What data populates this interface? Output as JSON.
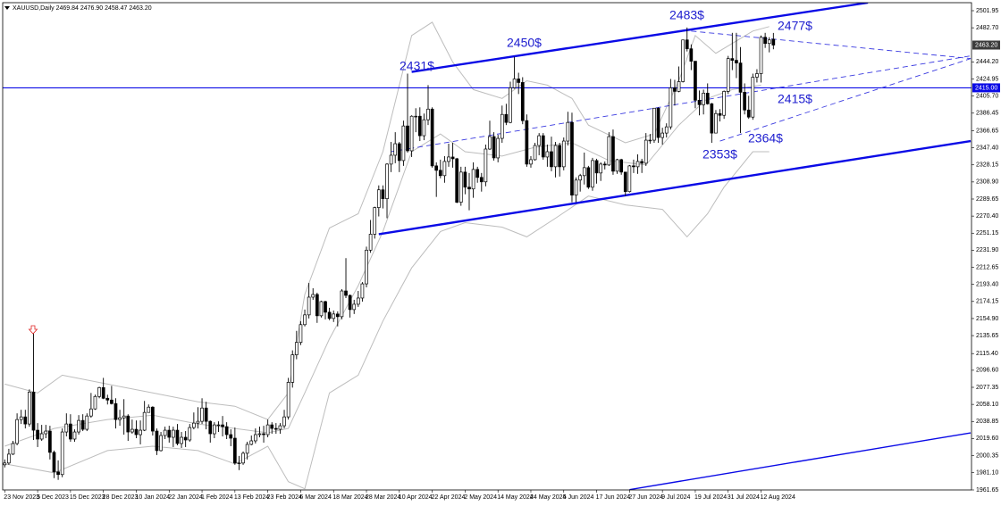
{
  "chart_data": {
    "type": "candlestick",
    "title": "XAUUSD,Daily 2469.84 2476.90 2458.47 2463.20",
    "categories": [
      "23 Nov 2023",
      null,
      null,
      null,
      null,
      null,
      null,
      null,
      "5 Dec 2023",
      null,
      null,
      null,
      null,
      null,
      null,
      null,
      "15 Dec 2023",
      null,
      null,
      null,
      null,
      null,
      null,
      null,
      "28 Dec 2023",
      null,
      null,
      null,
      null,
      null,
      null,
      null,
      "10 Jan 2024",
      null,
      null,
      null,
      null,
      null,
      null,
      null,
      "22 Jan 2024",
      null,
      null,
      null,
      null,
      null,
      null,
      null,
      "1 Feb 2024",
      null,
      null,
      null,
      null,
      null,
      null,
      null,
      "13 Feb 2024",
      null,
      null,
      null,
      null,
      null,
      null,
      null,
      "23 Feb 2024",
      null,
      null,
      null,
      null,
      null,
      null,
      null,
      "6 Mar 2024",
      null,
      null,
      null,
      null,
      null,
      null,
      null,
      "18 Mar 2024",
      null,
      null,
      null,
      null,
      null,
      null,
      null,
      "28 Mar 2024",
      null,
      null,
      null,
      null,
      null,
      null,
      null,
      "10 Apr 2024",
      null,
      null,
      null,
      null,
      null,
      null,
      null,
      "22 Apr 2024",
      null,
      null,
      null,
      null,
      null,
      null,
      null,
      "2 May 2024",
      null,
      null,
      null,
      null,
      null,
      null,
      null,
      "14 May 2024",
      null,
      null,
      null,
      null,
      null,
      null,
      null,
      "24 May 2024",
      null,
      null,
      null,
      null,
      null,
      null,
      null,
      "5 Jun 2024",
      null,
      null,
      null,
      null,
      null,
      null,
      null,
      "17 Jun 2024",
      null,
      null,
      null,
      null,
      null,
      null,
      null,
      "27 Jun 2024",
      null,
      null,
      null,
      null,
      null,
      null,
      null,
      "9 Jul 2024",
      null,
      null,
      null,
      null,
      null,
      null,
      null,
      "19 Jul 2024",
      null,
      null,
      null,
      null,
      null,
      null,
      null,
      "31 Jul 2024",
      null,
      null,
      null,
      null,
      null,
      null,
      null,
      "12 Aug 2024",
      null,
      null,
      null
    ],
    "open": [
      1990,
      1992,
      2002,
      2014,
      2041,
      2044,
      2036,
      2072,
      2029,
      2019,
      2025,
      2028,
      2004,
      1982,
      1979,
      2027,
      2036,
      2019,
      2027,
      2040,
      2030,
      2045,
      2053,
      2067,
      2077,
      2065,
      2063,
      2059,
      2041,
      2043,
      2045,
      2027,
      2030,
      2024,
      2029,
      2049,
      2055,
      2028,
      2006,
      2023,
      2029,
      2021,
      2029,
      2014,
      2021,
      2018,
      2032,
      2037,
      2039,
      2054,
      2039,
      2025,
      2035,
      2035,
      2033,
      2024,
      2020,
      1992,
      1992,
      2003,
      2013,
      2017,
      2024,
      2025,
      2024,
      2035,
      2031,
      2030,
      2034,
      2044,
      2083,
      2114,
      2128,
      2148,
      2159,
      2179,
      2182,
      2158,
      2174,
      2162,
      2155,
      2160,
      2157,
      2186,
      2181,
      2165,
      2171,
      2178,
      2194,
      2232,
      2250,
      2280,
      2300,
      2290,
      2329,
      2339,
      2352,
      2333,
      2372,
      2344,
      2383,
      2383,
      2361,
      2379,
      2391,
      2327,
      2322,
      2316,
      2332,
      2337,
      2335,
      2286,
      2320,
      2303,
      2301,
      2323,
      2314,
      2309,
      2346,
      2360,
      2336,
      2358,
      2385,
      2376,
      2415,
      2425,
      2421,
      2378,
      2329,
      2334,
      2350,
      2361,
      2337,
      2343,
      2326,
      2350,
      2326,
      2355,
      2376,
      2294,
      2311,
      2316,
      2325,
      2303,
      2333,
      2319,
      2329,
      2328,
      2360,
      2321,
      2334,
      2320,
      2298,
      2327,
      2326,
      2332,
      2330,
      2356,
      2356,
      2392,
      2359,
      2364,
      2371,
      2415,
      2411,
      2422,
      2469,
      2459,
      2445,
      2401,
      2396,
      2409,
      2397,
      2364,
      2386,
      2384,
      2411,
      2448,
      2446,
      2443,
      2410,
      2390,
      2382,
      2427,
      2431,
      2472,
      2465,
      2469.84
    ],
    "high": [
      1996,
      2008,
      2017,
      2048,
      2052,
      2052,
      2075,
      2146,
      2037,
      2035,
      2035,
      2034,
      2006,
      1995,
      2031,
      2048,
      2047,
      2030,
      2046,
      2047,
      2048,
      2071,
      2069,
      2078,
      2088,
      2069,
      2079,
      2065,
      2052,
      2064,
      2047,
      2041,
      2040,
      2040,
      2062,
      2058,
      2056,
      2031,
      2027,
      2033,
      2034,
      2033,
      2036,
      2027,
      2028,
      2036,
      2049,
      2055,
      2065,
      2061,
      2040,
      2038,
      2039,
      2045,
      2038,
      2030,
      2032,
      2000,
      2005,
      2016,
      2023,
      2031,
      2033,
      2034,
      2041,
      2038,
      2037,
      2037,
      2052,
      2088,
      2119,
      2141,
      2152,
      2165,
      2195,
      2189,
      2184,
      2175,
      2175,
      2167,
      2164,
      2163,
      2188,
      2223,
      2182,
      2176,
      2186,
      2196,
      2236,
      2266,
      2281,
      2305,
      2305,
      2330,
      2354,
      2365,
      2354,
      2378,
      2431,
      2384,
      2392,
      2393,
      2386,
      2418,
      2393,
      2331,
      2334,
      2338,
      2352,
      2353,
      2336,
      2326,
      2326,
      2319,
      2331,
      2326,
      2319,
      2351,
      2378,
      2365,
      2362,
      2395,
      2397,
      2422,
      2450,
      2432,
      2427,
      2385,
      2338,
      2353,
      2364,
      2364,
      2351,
      2360,
      2354,
      2353,
      2359,
      2388,
      2387,
      2314,
      2318,
      2342,
      2327,
      2336,
      2335,
      2331,
      2332,
      2365,
      2368,
      2335,
      2335,
      2320,
      2328,
      2334,
      2340,
      2335,
      2364,
      2363,
      2392,
      2393,
      2370,
      2375,
      2425,
      2424,
      2439,
      2469,
      2483,
      2464,
      2445,
      2412,
      2413,
      2420,
      2398,
      2390,
      2391,
      2412,
      2451,
      2477,
      2477,
      2461,
      2420,
      2406,
      2431,
      2436,
      2474,
      2477,
      2472,
      2476.9
    ],
    "low": [
      1987,
      1990,
      2001,
      2012,
      2036,
      2031,
      2033,
      2018,
      2010,
      2017,
      2020,
      1996,
      1975,
      1973,
      1976,
      2022,
      2016,
      2016,
      2024,
      2028,
      2028,
      2043,
      2052,
      2065,
      2064,
      2058,
      2058,
      2031,
      2034,
      2024,
      2017,
      2025,
      2020,
      2013,
      2028,
      2049,
      2023,
      2001,
      2005,
      2019,
      2015,
      2010,
      2012,
      2009,
      2010,
      2016,
      2030,
      2031,
      2036,
      2030,
      2015,
      2020,
      2027,
      2022,
      2019,
      2011,
      1990,
      1984,
      1990,
      1996,
      2012,
      2014,
      2021,
      2015,
      2021,
      2025,
      2025,
      2025,
      2031,
      2041,
      2077,
      2109,
      2125,
      2146,
      2155,
      2176,
      2150,
      2156,
      2154,
      2153,
      2151,
      2146,
      2154,
      2178,
      2156,
      2160,
      2168,
      2174,
      2190,
      2229,
      2245,
      2270,
      2279,
      2268,
      2320,
      2330,
      2320,
      2327,
      2342,
      2337,
      2365,
      2355,
      2356,
      2373,
      2325,
      2292,
      2313,
      2308,
      2326,
      2325,
      2285,
      2282,
      2295,
      2277,
      2291,
      2308,
      2298,
      2304,
      2345,
      2333,
      2331,
      2353,
      2373,
      2375,
      2414,
      2408,
      2374,
      2326,
      2325,
      2333,
      2339,
      2334,
      2326,
      2321,
      2314,
      2315,
      2322,
      2350,
      2286,
      2286,
      2298,
      2306,
      2301,
      2299,
      2307,
      2310,
      2323,
      2327,
      2317,
      2318,
      2317,
      2293,
      2297,
      2319,
      2318,
      2319,
      2327,
      2352,
      2353,
      2353,
      2351,
      2359,
      2368,
      2395,
      2410,
      2421,
      2456,
      2435,
      2392,
      2384,
      2385,
      2396,
      2353,
      2364,
      2377,
      2380,
      2408,
      2435,
      2426,
      2364,
      2385,
      2380,
      2379,
      2421,
      2421,
      2460,
      2455,
      2458.47
    ],
    "close": [
      1992,
      2002,
      2014,
      2041,
      2044,
      2036,
      2072,
      2029,
      2019,
      2025,
      2028,
      2004,
      1982,
      1979,
      2027,
      2036,
      2019,
      2027,
      2040,
      2030,
      2045,
      2053,
      2067,
      2077,
      2065,
      2063,
      2059,
      2041,
      2043,
      2045,
      2027,
      2030,
      2024,
      2029,
      2049,
      2055,
      2028,
      2006,
      2023,
      2029,
      2021,
      2029,
      2014,
      2021,
      2018,
      2032,
      2037,
      2039,
      2054,
      2039,
      2025,
      2035,
      2035,
      2033,
      2024,
      2020,
      1992,
      1992,
      2003,
      2013,
      2017,
      2024,
      2025,
      2024,
      2035,
      2031,
      2030,
      2034,
      2044,
      2083,
      2114,
      2128,
      2148,
      2159,
      2179,
      2182,
      2158,
      2174,
      2162,
      2155,
      2160,
      2157,
      2186,
      2181,
      2165,
      2171,
      2178,
      2194,
      2232,
      2250,
      2280,
      2300,
      2290,
      2329,
      2339,
      2352,
      2333,
      2372,
      2344,
      2383,
      2383,
      2361,
      2379,
      2391,
      2327,
      2322,
      2316,
      2332,
      2337,
      2335,
      2286,
      2320,
      2303,
      2301,
      2323,
      2314,
      2309,
      2346,
      2360,
      2336,
      2358,
      2385,
      2376,
      2415,
      2425,
      2421,
      2378,
      2329,
      2334,
      2350,
      2361,
      2337,
      2343,
      2326,
      2350,
      2326,
      2355,
      2376,
      2294,
      2311,
      2316,
      2325,
      2303,
      2333,
      2319,
      2329,
      2328,
      2360,
      2321,
      2334,
      2320,
      2298,
      2327,
      2326,
      2332,
      2330,
      2356,
      2356,
      2392,
      2359,
      2364,
      2371,
      2415,
      2411,
      2422,
      2469,
      2459,
      2445,
      2401,
      2396,
      2409,
      2397,
      2364,
      2386,
      2384,
      2411,
      2448,
      2446,
      2443,
      2410,
      2390,
      2382,
      2427,
      2431,
      2472,
      2465,
      2469,
      2463.2
    ],
    "up_color": "#ffffff",
    "down_color": "#000000",
    "wick_color": "#000000",
    "bands": [
      {
        "color": "#bdbdbd",
        "x": [
          0,
          8,
          14,
          25,
          36,
          47,
          56,
          64,
          69,
          73,
          79,
          86,
          92,
          99,
          104,
          109,
          114,
          121,
          127,
          132,
          138,
          142,
          151,
          158,
          164,
          168,
          173,
          182,
          186
        ],
        "values": [
          2081,
          2071,
          2091,
          2081,
          2071,
          2061,
          2056,
          2041,
          2071,
          2182,
          2257,
          2273,
          2343,
          2474,
          2489,
          2444,
          2413,
          2403,
          2423,
          2418,
          2403,
          2373,
          2353,
          2363,
          2423,
          2474,
          2454,
          2479,
          2484
        ]
      },
      {
        "color": "#bdbdbd",
        "x": [
          0,
          12,
          25,
          36,
          47,
          56,
          64,
          69,
          73,
          79,
          86,
          92,
          99,
          106,
          112,
          121,
          129,
          138,
          147,
          156,
          164,
          171,
          177,
          184
        ],
        "values": [
          2011,
          2031,
          2041,
          2046,
          2036,
          2031,
          2026,
          2031,
          2071,
          2132,
          2192,
          2253,
          2343,
          2363,
          2343,
          2338,
          2348,
          2353,
          2333,
          2328,
          2373,
          2403,
          2413,
          2418
        ]
      },
      {
        "color": "#bdbdbd",
        "x": [
          0,
          12,
          25,
          36,
          47,
          56,
          64,
          69,
          73,
          79,
          86,
          92,
          99,
          106,
          112,
          121,
          127,
          134,
          142,
          151,
          160,
          166,
          171,
          175,
          182,
          186
        ],
        "values": [
          1991,
          1981,
          2006,
          2011,
          2006,
          1991,
          2011,
          1971,
          1963,
          2071,
          2091,
          2152,
          2212,
          2253,
          2263,
          2258,
          2247,
          2268,
          2293,
          2283,
          2278,
          2247,
          2273,
          2303,
          2343,
          2343
        ]
      }
    ],
    "trendlines": [
      {
        "style": "solid",
        "color": "#0a0ae6",
        "x": [
          99,
          210
        ],
        "y": [
          2433,
          2511
        ]
      },
      {
        "style": "solid",
        "color": "#0a0ae6",
        "x": [
          91,
          235
        ],
        "y": [
          2250,
          2355
        ]
      },
      {
        "style": "thin",
        "color": "#0a0ae6",
        "x": [
          152,
          235
        ],
        "y": [
          1962,
          2026
        ]
      },
      {
        "style": "dashed",
        "color": "#3a3ae0",
        "x": [
          167,
          235
        ],
        "y": [
          2479,
          2448
        ]
      },
      {
        "style": "dashed",
        "color": "#3a3ae0",
        "x": [
          94,
          235
        ],
        "y": [
          2343,
          2451
        ]
      },
      {
        "style": "dashed",
        "color": "#3a3ae0",
        "x": [
          174,
          235
        ],
        "y": [
          2355,
          2448
        ]
      }
    ],
    "hline": {
      "value": 2415,
      "label": "2415.00",
      "color": "#0a0ae6"
    },
    "last_price": {
      "value": 2463.2,
      "label": "2463.20",
      "color": "#3c3c3c"
    },
    "annotations": [
      "2431$",
      "2450$",
      "2483$",
      "2477$",
      "2415$",
      "2364$",
      "2353$"
    ],
    "annotation_color": "#1c1ccf",
    "xlim": [
      -0.5,
      235.2
    ],
    "ylim": [
      1961.65,
      2511
    ],
    "yticks": [
      2501.95,
      {
        "value": 2482.7,
        "label": "2482.70"
      },
      {
        "value": 2444.2,
        "label": "2444.20"
      },
      2424.95,
      {
        "value": 2405.7,
        "label": "2405.70"
      },
      2386.45,
      2366.65,
      {
        "value": 2347.4,
        "label": "2347.40"
      },
      2328.15,
      {
        "value": 2308.9,
        "label": "2308.90"
      },
      2289.65,
      {
        "value": 2270.4,
        "label": "2270.40"
      },
      2251.15,
      {
        "value": 2231.9,
        "label": "2231.90"
      },
      2212.65,
      {
        "value": 2193.4,
        "label": "2193.40"
      },
      2174.15,
      {
        "value": 2154.9,
        "label": "2154.90"
      },
      2135.65,
      {
        "value": 2115.4,
        "label": "2115.40"
      },
      {
        "value": 2096.6,
        "label": "2096.60"
      },
      2077.35,
      {
        "value": 2058.1,
        "label": "2058.10"
      },
      2038.85,
      {
        "value": 2019.6,
        "label": "2019.60"
      },
      2000.35,
      {
        "value": 1981.1,
        "label": "1981.10"
      },
      1961.65
    ]
  }
}
